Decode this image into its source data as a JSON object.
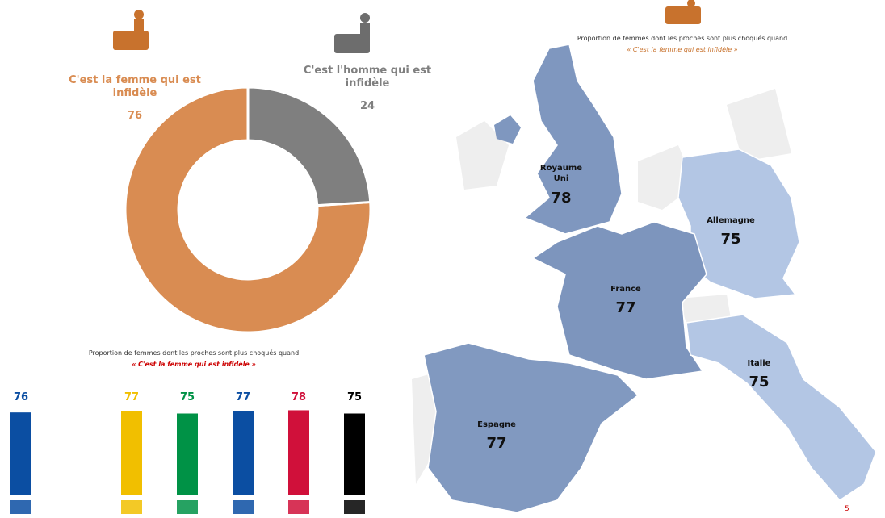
{
  "chart_data": [
    {
      "type": "pie",
      "donut": true,
      "categories": [
        "C'est la femme qui est infidèle",
        "C'est l'homme qui est infidèle"
      ],
      "values": [
        76,
        24
      ],
      "colors": [
        "#d98c52",
        "#7f7f7f"
      ]
    },
    {
      "type": "bar",
      "title": "Proportion de femmes dont les proches sont plus choqués quand",
      "subtitle": "« C'est la femme qui est infidèle »",
      "categories": [
        null,
        null,
        null,
        null,
        null,
        null
      ],
      "values": [
        76,
        77,
        75,
        77,
        78,
        75
      ],
      "colors": [
        "#0b4ea2",
        "#f1bf00",
        "#009246",
        "#0b4ea2",
        "#d0103a",
        "#000000"
      ]
    },
    {
      "type": "map",
      "title": "Proportion de femmes dont les proches sont plus choqués quand",
      "subtitle": "« C'est la femme qui est infidèle »",
      "categories": [
        "Royaume Uni",
        "Allemagne",
        "France",
        "Italie",
        "Espagne"
      ],
      "values": [
        78,
        75,
        77,
        75,
        77
      ],
      "colors": [
        "#7f97bf",
        "#b3c6e4",
        "#7d95bd",
        "#b3c6e4",
        "#8199c0"
      ]
    }
  ],
  "page_number": "5"
}
